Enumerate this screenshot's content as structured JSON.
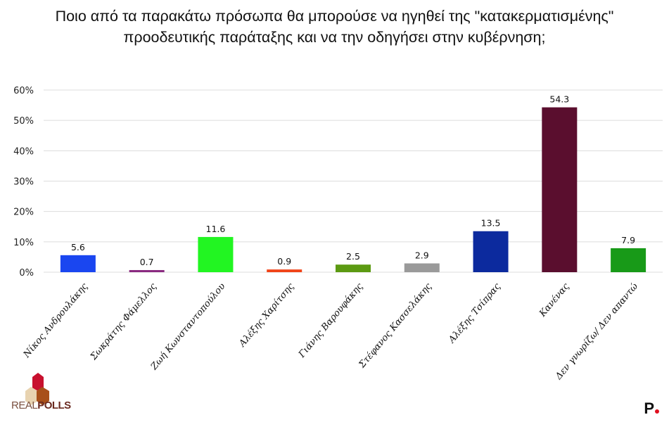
{
  "chart_data": {
    "type": "bar",
    "title_line1": "Ποιο από τα παρακάτω πρόσωπα θα μπορούσε να ηγηθεί της \"κατακερματισμένης\"",
    "title_line2": "προοδευτικής παράταξης και να την οδηγήσει στην κυβέρνηση;",
    "categories": [
      "Νίκος Ανδρουλάκης",
      "Σωκράτης Φάμελλος",
      "Ζωή Κωνσταντοπούλου",
      "Αλέξης Χαρίτσης",
      "Γιάνης Βαρουφάκης",
      "Στέφανος Κασσελάκης",
      "Αλέξης Τσίπρας",
      "Κανένας",
      "Δεν γνωρίζω/ Δεν απαντώ"
    ],
    "values": [
      5.6,
      0.7,
      11.6,
      0.9,
      2.5,
      2.9,
      13.5,
      54.3,
      7.9
    ],
    "colors": [
      "#1a46f0",
      "#8a2a80",
      "#22f522",
      "#f04418",
      "#5c9a12",
      "#9a9a9a",
      "#0c2a9e",
      "#5a0e2e",
      "#189a18"
    ],
    "ylim": [
      0,
      60
    ],
    "yticks": [
      "0%",
      "10%",
      "20%",
      "30%",
      "40%",
      "50%",
      "60%"
    ],
    "grid": true,
    "xlabel": "",
    "ylabel": ""
  },
  "logos": {
    "realpolls": "REALPOLLS",
    "p": "P"
  }
}
